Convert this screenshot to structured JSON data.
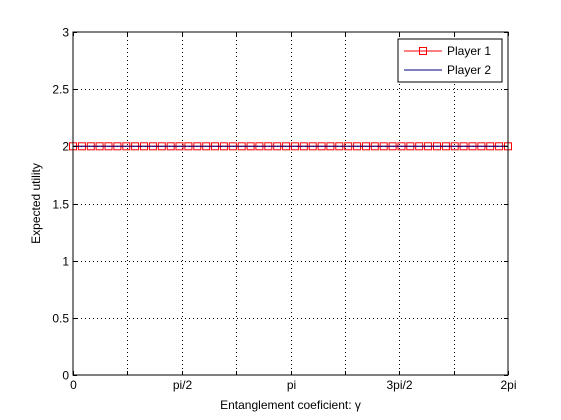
{
  "chart_data": {
    "type": "line",
    "title": "",
    "xlabel": "Entanglement coeficient: γ",
    "ylabel": "Expected utility",
    "xlim": [
      0,
      6.2832
    ],
    "ylim": [
      0,
      3
    ],
    "grid": true,
    "legend_position": "top-right",
    "x_ticks": [
      {
        "value": 0,
        "label": "0"
      },
      {
        "value": 0.7854,
        "label": ""
      },
      {
        "value": 1.5708,
        "label": "pi/2"
      },
      {
        "value": 2.3562,
        "label": ""
      },
      {
        "value": 3.1416,
        "label": "pi"
      },
      {
        "value": 3.927,
        "label": ""
      },
      {
        "value": 4.7124,
        "label": "3pi/2"
      },
      {
        "value": 5.4978,
        "label": ""
      },
      {
        "value": 6.2832,
        "label": "2pi"
      }
    ],
    "y_ticks": [
      {
        "value": 0,
        "label": "0"
      },
      {
        "value": 0.5,
        "label": "0.5"
      },
      {
        "value": 1,
        "label": "1"
      },
      {
        "value": 1.5,
        "label": "1.5"
      },
      {
        "value": 2,
        "label": "2"
      },
      {
        "value": 2.5,
        "label": "2.5"
      },
      {
        "value": 3,
        "label": "3"
      }
    ],
    "series": [
      {
        "name": "Player 1",
        "color": "#ff0000",
        "marker": "square",
        "line": "solid",
        "y_constant": 2,
        "points": 50
      },
      {
        "name": "Player 2",
        "color": "#000080",
        "marker": "none",
        "line": "solid",
        "y_constant": 2,
        "points": 50
      }
    ]
  }
}
